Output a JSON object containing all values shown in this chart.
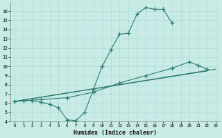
{
  "xlabel": "Humidex (Indice chaleur)",
  "bg_color": "#c8ebe6",
  "line_color": "#2a7a6e",
  "xlim": [
    -0.5,
    23.5
  ],
  "ylim": [
    4,
    17
  ],
  "yticks": [
    4,
    5,
    6,
    7,
    8,
    9,
    10,
    11,
    12,
    13,
    14,
    15,
    16
  ],
  "xticks": [
    0,
    1,
    2,
    3,
    4,
    5,
    6,
    7,
    8,
    9,
    10,
    11,
    12,
    13,
    14,
    15,
    16,
    17,
    18,
    19,
    20,
    21,
    22,
    23
  ],
  "curve1_x": [
    0,
    1,
    2,
    3,
    4,
    5,
    6,
    7,
    8,
    9,
    10,
    11,
    12,
    13,
    14,
    15,
    16,
    17,
    18
  ],
  "curve1_y": [
    6.2,
    6.3,
    6.3,
    6.1,
    5.9,
    5.5,
    4.2,
    4.1,
    5.0,
    7.5,
    10.0,
    11.8,
    13.5,
    13.6,
    15.7,
    16.4,
    16.2,
    16.2,
    14.7
  ],
  "curve2_x": [
    0,
    3,
    6,
    9,
    12,
    15,
    18,
    20,
    21,
    22
  ],
  "curve2_y": [
    6.2,
    6.4,
    6.6,
    7.2,
    8.2,
    9.0,
    9.8,
    10.5,
    10.1,
    9.7
  ],
  "curve3_x": [
    0,
    23
  ],
  "curve3_y": [
    6.2,
    9.7
  ],
  "curve4_x": [
    0,
    22
  ],
  "curve4_y": [
    6.2,
    9.5
  ]
}
